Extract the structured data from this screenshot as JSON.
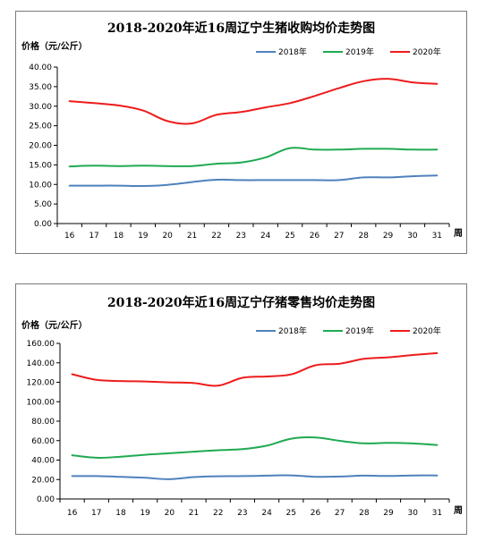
{
  "chart_data": [
    {
      "type": "line",
      "title": "2018-2020年近16周辽宁生猪收购均价走势图",
      "ylabel": "价格（元/公斤）",
      "xlabel": "周",
      "categories": [
        "16",
        "17",
        "18",
        "19",
        "20",
        "21",
        "22",
        "23",
        "24",
        "25",
        "26",
        "27",
        "28",
        "29",
        "30",
        "31"
      ],
      "ylim": [
        0,
        40
      ],
      "yticks": [
        "0.00",
        "5.00",
        "10.00",
        "15.00",
        "20.00",
        "25.00",
        "30.00",
        "35.00",
        "40.00"
      ],
      "grid": false,
      "legend_position": "top-right",
      "series": [
        {
          "name": "2018年",
          "color": "#4f81bd",
          "values": [
            9.7,
            9.7,
            9.7,
            9.6,
            9.9,
            10.6,
            11.2,
            11.1,
            11.1,
            11.1,
            11.1,
            11.1,
            11.8,
            11.8,
            12.1,
            12.3
          ]
        },
        {
          "name": "2019年",
          "color": "#1faa52",
          "values": [
            14.6,
            14.8,
            14.7,
            14.8,
            14.7,
            14.7,
            15.3,
            15.6,
            16.9,
            19.3,
            18.9,
            18.9,
            19.1,
            19.1,
            18.9,
            18.9
          ]
        },
        {
          "name": "2020年",
          "color": "#ee1c1c",
          "values": [
            31.3,
            30.8,
            30.2,
            28.9,
            26.2,
            25.6,
            27.8,
            28.5,
            29.7,
            30.8,
            32.6,
            34.6,
            36.4,
            37.0,
            36.1,
            35.7
          ]
        }
      ]
    },
    {
      "type": "line",
      "title": "2018-2020年近16周辽宁仔猪零售均价走势图",
      "ylabel": "价格（元/公斤）",
      "xlabel": "周",
      "categories": [
        "16",
        "17",
        "18",
        "19",
        "20",
        "21",
        "22",
        "23",
        "24",
        "25",
        "26",
        "27",
        "28",
        "29",
        "30",
        "31"
      ],
      "ylim": [
        0,
        160
      ],
      "yticks": [
        "0.00",
        "20.00",
        "40.00",
        "60.00",
        "80.00",
        "100.00",
        "120.00",
        "140.00",
        "160.00"
      ],
      "grid": false,
      "legend_position": "top-right",
      "series": [
        {
          "name": "2018年",
          "color": "#4f81bd",
          "values": [
            23.5,
            23.5,
            22.8,
            21.8,
            20.3,
            22.5,
            23.4,
            23.5,
            24.0,
            24.3,
            22.8,
            23.1,
            24.0,
            23.6,
            24.2,
            24.2
          ]
        },
        {
          "name": "2019年",
          "color": "#1faa52",
          "values": [
            45.0,
            42.4,
            43.5,
            45.4,
            47.0,
            48.6,
            50.1,
            51.2,
            54.8,
            62.0,
            63.3,
            59.8,
            57.2,
            57.7,
            57.1,
            55.5
          ]
        },
        {
          "name": "2020年",
          "color": "#ee1c1c",
          "values": [
            128.3,
            122.5,
            121.3,
            120.8,
            119.9,
            119.2,
            116.5,
            124.6,
            126.0,
            128.1,
            137.5,
            139.1,
            144.1,
            145.7,
            148.0,
            150.0
          ]
        }
      ]
    }
  ]
}
